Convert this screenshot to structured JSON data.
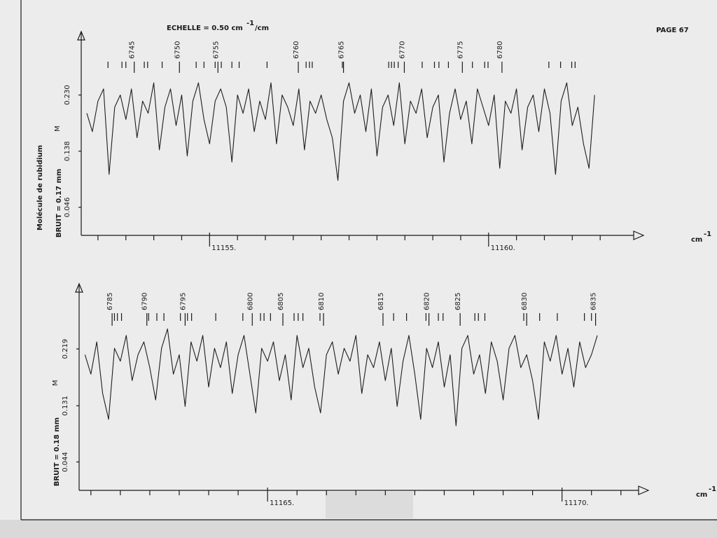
{
  "page_header": {
    "scale": {
      "text": "ECHELLE = 0.50 cm",
      "exp": "-1",
      "suffix": "/cm"
    },
    "page": "PAGE 67"
  },
  "side_label": "Molécule de rubidium",
  "chart_data": [
    {
      "type": "line",
      "color": "#1e1e1e",
      "ylabel": "M",
      "noise_label": "BRUIT = 0.17 mm",
      "x_unit": "cm",
      "x_unit_exp": "-1",
      "xlim": [
        11152.7,
        11162.6
      ],
      "ylim": [
        0,
        0.334
      ],
      "xticks": [
        {
          "value": 11155,
          "label": "11155."
        },
        {
          "value": 11160,
          "label": "11160."
        }
      ],
      "xminorticks": [
        11153,
        11153.5,
        11154,
        11154.5,
        11155.5,
        11156,
        11156.5,
        11157,
        11157.5,
        11158,
        11158.5,
        11159,
        11159.5,
        11160.5,
        11161,
        11161.5,
        11162
      ],
      "yticks": [
        0.046,
        0.138,
        {
          "value": 0.23,
          "label": "0.230"
        }
      ],
      "line_markers": {
        "labeled": [
          {
            "value": 11153.65,
            "label": "6745"
          },
          {
            "value": 11154.46,
            "label": "6750"
          },
          {
            "value": 11155.15,
            "label": "6755"
          },
          {
            "value": 11156.59,
            "label": "6760"
          },
          {
            "value": 11157.4,
            "label": "6765"
          },
          {
            "value": 11158.49,
            "label": "6770"
          },
          {
            "value": 11159.53,
            "label": "6775"
          },
          {
            "value": 11160.24,
            "label": "6780"
          }
        ],
        "unlabeled": [
          11153.18,
          11153.43,
          11153.5,
          11153.83,
          11153.89,
          11154.15,
          11154.76,
          11154.9,
          11155.1,
          11155.21,
          11155.4,
          11155.53,
          11156.03,
          11156.73,
          11156.79,
          11156.84,
          11157.38,
          11158.21,
          11158.26,
          11158.31,
          11158.38,
          11158.81,
          11159.03,
          11159.11,
          11159.28,
          11159.71,
          11159.93,
          11159.99,
          11161.08,
          11161.29,
          11161.49,
          11161.55
        ]
      },
      "x": [
        11152.8,
        11152.9,
        11153.0,
        11153.1,
        11153.2,
        11153.3,
        11153.4,
        11153.5,
        11153.6,
        11153.7,
        11153.8,
        11153.9,
        11154.0,
        11154.1,
        11154.2,
        11154.3,
        11154.4,
        11154.5,
        11154.6,
        11154.7,
        11154.8,
        11154.9,
        11155.0,
        11155.1,
        11155.2,
        11155.3,
        11155.4,
        11155.5,
        11155.6,
        11155.7,
        11155.8,
        11155.9,
        11156.0,
        11156.1,
        11156.2,
        11156.3,
        11156.4,
        11156.5,
        11156.6,
        11156.7,
        11156.8,
        11156.9,
        11157.0,
        11157.1,
        11157.2,
        11157.3,
        11157.4,
        11157.5,
        11157.6,
        11157.7,
        11157.8,
        11157.9,
        11158.0,
        11158.1,
        11158.2,
        11158.3,
        11158.4,
        11158.5,
        11158.6,
        11158.7,
        11158.8,
        11158.9,
        11159.0,
        11159.1,
        11159.2,
        11159.3,
        11159.4,
        11159.5,
        11159.6,
        11159.7,
        11159.8,
        11159.9,
        11160.0,
        11160.1,
        11160.2,
        11160.3,
        11160.4,
        11160.5,
        11160.6,
        11160.7,
        11160.8,
        11160.9,
        11161.0,
        11161.1,
        11161.2,
        11161.3,
        11161.4,
        11161.5,
        11161.6,
        11161.7,
        11161.8,
        11161.9
      ],
      "values": [
        0.2,
        0.17,
        0.22,
        0.24,
        0.1,
        0.21,
        0.23,
        0.19,
        0.24,
        0.16,
        0.22,
        0.2,
        0.25,
        0.14,
        0.21,
        0.24,
        0.18,
        0.23,
        0.13,
        0.22,
        0.25,
        0.19,
        0.15,
        0.22,
        0.24,
        0.21,
        0.12,
        0.23,
        0.2,
        0.24,
        0.17,
        0.22,
        0.19,
        0.25,
        0.15,
        0.23,
        0.21,
        0.18,
        0.24,
        0.14,
        0.22,
        0.2,
        0.23,
        0.19,
        0.16,
        0.09,
        0.22,
        0.25,
        0.2,
        0.23,
        0.17,
        0.24,
        0.13,
        0.21,
        0.23,
        0.18,
        0.25,
        0.15,
        0.22,
        0.2,
        0.24,
        0.16,
        0.21,
        0.23,
        0.12,
        0.2,
        0.24,
        0.19,
        0.22,
        0.15,
        0.24,
        0.21,
        0.18,
        0.23,
        0.11,
        0.22,
        0.2,
        0.24,
        0.14,
        0.21,
        0.23,
        0.17,
        0.24,
        0.2,
        0.1,
        0.22,
        0.25,
        0.18,
        0.21,
        0.15,
        0.11,
        0.23
      ]
    },
    {
      "type": "line",
      "color": "#1e1e1e",
      "ylabel": "M",
      "noise_label": "BRUIT = 0.18 mm",
      "x_unit": "cm",
      "x_unit_exp": "-1",
      "xlim": [
        11161.8,
        11171.3
      ],
      "ylim": [
        0,
        0.32
      ],
      "xticks": [
        {
          "value": 11165,
          "label": "11165."
        },
        {
          "value": 11170,
          "label": "11170."
        }
      ],
      "xminorticks": [
        11162,
        11162.5,
        11163,
        11163.5,
        11164,
        11164.5,
        11165.5,
        11166,
        11166.5,
        11167,
        11167.5,
        11168,
        11168.5,
        11169,
        11169.5,
        11170.5,
        11171
      ],
      "yticks": [
        0.044,
        0.131,
        0.219
      ],
      "line_markers": {
        "labeled": [
          {
            "value": 11162.36,
            "label": "6785"
          },
          {
            "value": 11162.95,
            "label": "6790"
          },
          {
            "value": 11163.6,
            "label": "6795"
          },
          {
            "value": 11164.74,
            "label": "6800"
          },
          {
            "value": 11165.26,
            "label": "6805"
          },
          {
            "value": 11165.95,
            "label": "6810"
          },
          {
            "value": 11166.96,
            "label": "6815"
          },
          {
            "value": 11167.74,
            "label": "6820"
          },
          {
            "value": 11168.27,
            "label": "6825"
          },
          {
            "value": 11169.4,
            "label": "6830"
          },
          {
            "value": 11170.57,
            "label": "6835"
          }
        ],
        "unlabeled": [
          11162.4,
          11162.45,
          11162.52,
          11162.98,
          11163.12,
          11163.24,
          11163.52,
          11163.64,
          11163.71,
          11164.12,
          11164.58,
          11164.88,
          11164.94,
          11165.05,
          11165.45,
          11165.52,
          11165.6,
          11165.89,
          11167.14,
          11167.36,
          11167.69,
          11167.9,
          11167.98,
          11168.52,
          11168.58,
          11168.69,
          11169.35,
          11169.62,
          11169.92,
          11170.38,
          11170.5
        ]
      },
      "x": [
        11161.9,
        11162.0,
        11162.1,
        11162.2,
        11162.3,
        11162.4,
        11162.5,
        11162.6,
        11162.7,
        11162.8,
        11162.9,
        11163.0,
        11163.1,
        11163.2,
        11163.3,
        11163.4,
        11163.5,
        11163.6,
        11163.7,
        11163.8,
        11163.9,
        11164.0,
        11164.1,
        11164.2,
        11164.3,
        11164.4,
        11164.5,
        11164.6,
        11164.7,
        11164.8,
        11164.9,
        11165.0,
        11165.1,
        11165.2,
        11165.3,
        11165.4,
        11165.5,
        11165.6,
        11165.7,
        11165.8,
        11165.9,
        11166.0,
        11166.1,
        11166.2,
        11166.3,
        11166.4,
        11166.5,
        11166.6,
        11166.7,
        11166.8,
        11166.9,
        11167.0,
        11167.1,
        11167.2,
        11167.3,
        11167.4,
        11167.5,
        11167.6,
        11167.7,
        11167.8,
        11167.9,
        11168.0,
        11168.1,
        11168.2,
        11168.3,
        11168.4,
        11168.5,
        11168.6,
        11168.7,
        11168.8,
        11168.9,
        11169.0,
        11169.1,
        11169.2,
        11169.3,
        11169.4,
        11169.5,
        11169.6,
        11169.7,
        11169.8,
        11169.9,
        11170.0,
        11170.1,
        11170.2,
        11170.3,
        11170.4,
        11170.5,
        11170.6
      ],
      "values": [
        0.21,
        0.18,
        0.23,
        0.15,
        0.11,
        0.22,
        0.2,
        0.24,
        0.17,
        0.21,
        0.23,
        0.19,
        0.14,
        0.22,
        0.25,
        0.18,
        0.21,
        0.13,
        0.23,
        0.2,
        0.24,
        0.16,
        0.22,
        0.19,
        0.23,
        0.15,
        0.21,
        0.24,
        0.18,
        0.12,
        0.22,
        0.2,
        0.23,
        0.17,
        0.21,
        0.14,
        0.24,
        0.19,
        0.22,
        0.16,
        0.12,
        0.21,
        0.23,
        0.18,
        0.22,
        0.2,
        0.24,
        0.15,
        0.21,
        0.19,
        0.23,
        0.17,
        0.22,
        0.13,
        0.2,
        0.24,
        0.18,
        0.11,
        0.22,
        0.19,
        0.23,
        0.16,
        0.21,
        0.1,
        0.22,
        0.24,
        0.18,
        0.21,
        0.15,
        0.23,
        0.2,
        0.14,
        0.22,
        0.24,
        0.19,
        0.21,
        0.17,
        0.11,
        0.23,
        0.2,
        0.24,
        0.18,
        0.22,
        0.16,
        0.23,
        0.19,
        0.21,
        0.24
      ]
    }
  ]
}
